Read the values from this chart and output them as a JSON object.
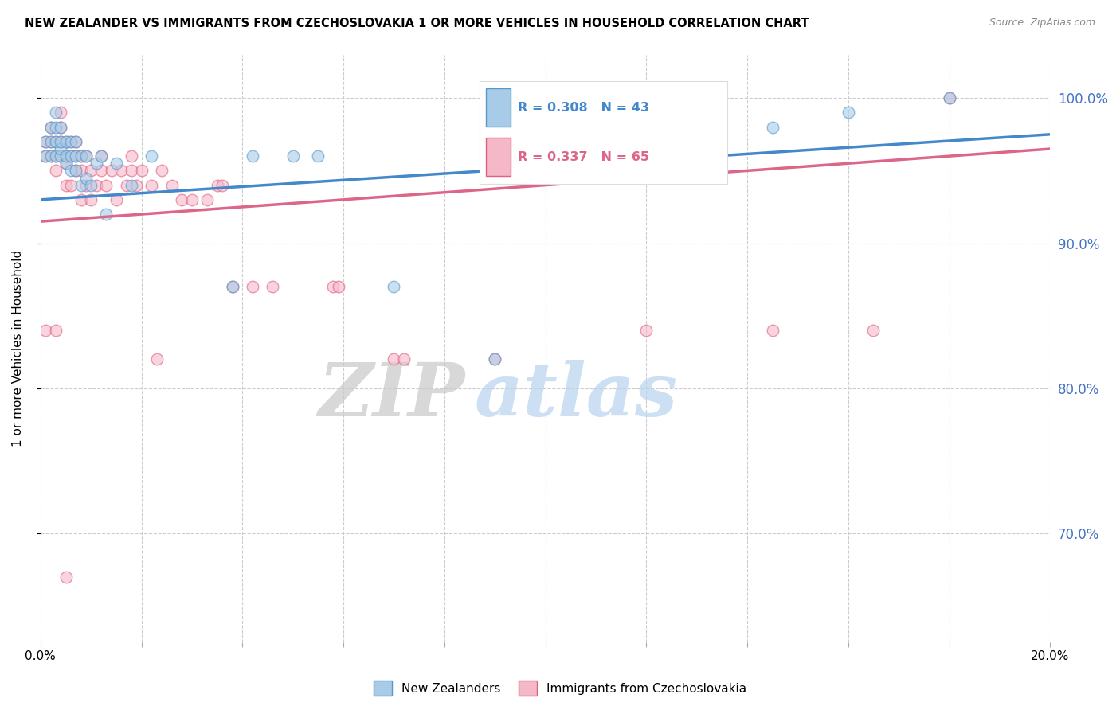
{
  "title": "NEW ZEALANDER VS IMMIGRANTS FROM CZECHOSLOVAKIA 1 OR MORE VEHICLES IN HOUSEHOLD CORRELATION CHART",
  "source": "Source: ZipAtlas.com",
  "ylabel": "1 or more Vehicles in Household",
  "x_min": 0.0,
  "x_max": 0.2,
  "y_min": 0.625,
  "y_max": 1.03,
  "y_ticks": [
    0.7,
    0.8,
    0.9,
    1.0
  ],
  "y_tick_labels": [
    "70.0%",
    "80.0%",
    "90.0%",
    "100.0%"
  ],
  "blue_R": 0.308,
  "blue_N": 43,
  "pink_R": 0.337,
  "pink_N": 65,
  "blue_color": "#a8cce8",
  "pink_color": "#f5b8c8",
  "blue_edge_color": "#5599cc",
  "pink_edge_color": "#e06080",
  "blue_line_color": "#4488cc",
  "pink_line_color": "#dd6688",
  "legend_blue_label": "New Zealanders",
  "legend_pink_label": "Immigrants from Czechoslovakia",
  "watermark_zip": "ZIP",
  "watermark_atlas": "atlas",
  "blue_line_x0": 0.0,
  "blue_line_y0": 0.93,
  "blue_line_x1": 0.2,
  "blue_line_y1": 0.975,
  "pink_line_x0": 0.0,
  "pink_line_y0": 0.915,
  "pink_line_x1": 0.2,
  "pink_line_y1": 0.965,
  "blue_x": [
    0.001,
    0.001,
    0.002,
    0.002,
    0.002,
    0.003,
    0.003,
    0.003,
    0.003,
    0.004,
    0.004,
    0.004,
    0.004,
    0.005,
    0.005,
    0.005,
    0.006,
    0.006,
    0.006,
    0.007,
    0.007,
    0.007,
    0.008,
    0.008,
    0.009,
    0.009,
    0.01,
    0.011,
    0.012,
    0.013,
    0.015,
    0.018,
    0.022,
    0.038,
    0.042,
    0.05,
    0.055,
    0.07,
    0.09,
    0.11,
    0.145,
    0.16,
    0.18
  ],
  "blue_y": [
    0.96,
    0.97,
    0.96,
    0.97,
    0.98,
    0.96,
    0.97,
    0.98,
    0.99,
    0.96,
    0.965,
    0.97,
    0.98,
    0.955,
    0.96,
    0.97,
    0.95,
    0.96,
    0.97,
    0.95,
    0.96,
    0.97,
    0.94,
    0.96,
    0.945,
    0.96,
    0.94,
    0.955,
    0.96,
    0.92,
    0.955,
    0.94,
    0.96,
    0.87,
    0.96,
    0.96,
    0.96,
    0.87,
    0.82,
    0.96,
    0.98,
    0.99,
    1.0
  ],
  "pink_x": [
    0.001,
    0.001,
    0.002,
    0.002,
    0.002,
    0.003,
    0.003,
    0.003,
    0.004,
    0.004,
    0.004,
    0.004,
    0.005,
    0.005,
    0.005,
    0.005,
    0.006,
    0.006,
    0.006,
    0.007,
    0.007,
    0.007,
    0.008,
    0.008,
    0.008,
    0.009,
    0.009,
    0.01,
    0.01,
    0.011,
    0.012,
    0.012,
    0.013,
    0.014,
    0.015,
    0.016,
    0.017,
    0.018,
    0.018,
    0.019,
    0.02,
    0.022,
    0.024,
    0.026,
    0.028,
    0.03,
    0.033,
    0.035,
    0.036,
    0.038,
    0.042,
    0.046,
    0.058,
    0.059,
    0.07,
    0.072,
    0.09,
    0.12,
    0.145,
    0.165,
    0.001,
    0.003,
    0.023,
    0.18,
    0.005
  ],
  "pink_y": [
    0.96,
    0.97,
    0.96,
    0.97,
    0.98,
    0.95,
    0.96,
    0.97,
    0.96,
    0.97,
    0.98,
    0.99,
    0.94,
    0.955,
    0.96,
    0.97,
    0.94,
    0.96,
    0.97,
    0.95,
    0.96,
    0.97,
    0.93,
    0.95,
    0.96,
    0.94,
    0.96,
    0.93,
    0.95,
    0.94,
    0.95,
    0.96,
    0.94,
    0.95,
    0.93,
    0.95,
    0.94,
    0.95,
    0.96,
    0.94,
    0.95,
    0.94,
    0.95,
    0.94,
    0.93,
    0.93,
    0.93,
    0.94,
    0.94,
    0.87,
    0.87,
    0.87,
    0.87,
    0.87,
    0.82,
    0.82,
    0.82,
    0.84,
    0.84,
    0.84,
    0.84,
    0.84,
    0.82,
    1.0,
    0.67
  ]
}
